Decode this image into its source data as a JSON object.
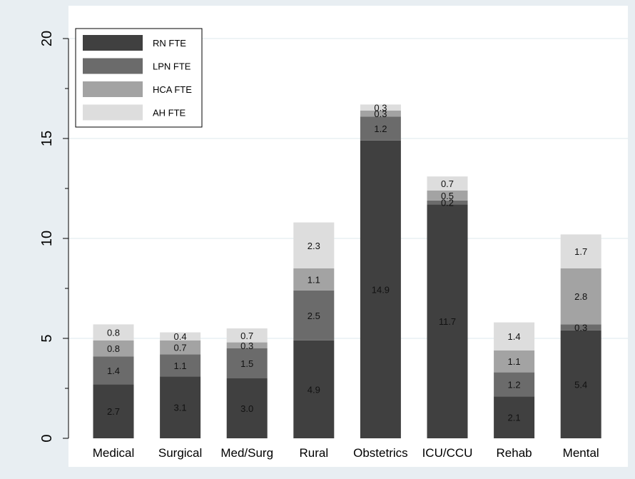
{
  "chart_data": {
    "type": "bar",
    "stacked": true,
    "title": "",
    "xlabel": "",
    "ylabel": "",
    "ylim": [
      0,
      20
    ],
    "yticks": [
      0,
      5,
      10,
      15,
      20
    ],
    "grid": true,
    "legend": {
      "position": "top-left"
    },
    "categories": [
      "Medical",
      "Surgical",
      "Med/Surg",
      "Rural",
      "Obstetrics",
      "ICU/CCU",
      "Rehab",
      "Mental"
    ],
    "series": [
      {
        "name": "RN FTE",
        "color": "#404040",
        "values": [
          2.7,
          3.1,
          3.0,
          4.9,
          14.9,
          11.7,
          2.1,
          5.4
        ]
      },
      {
        "name": "LPN FTE",
        "color": "#6b6b6b",
        "values": [
          1.4,
          1.1,
          1.5,
          2.5,
          1.2,
          0.2,
          1.2,
          0.3
        ]
      },
      {
        "name": "HCA FTE",
        "color": "#a3a3a3",
        "values": [
          0.8,
          0.7,
          0.3,
          1.1,
          0.3,
          0.5,
          1.1,
          2.8
        ]
      },
      {
        "name": "AH FTE",
        "color": "#dddddd",
        "values": [
          0.8,
          0.4,
          0.7,
          2.3,
          0.3,
          0.7,
          1.4,
          1.7
        ]
      }
    ]
  }
}
